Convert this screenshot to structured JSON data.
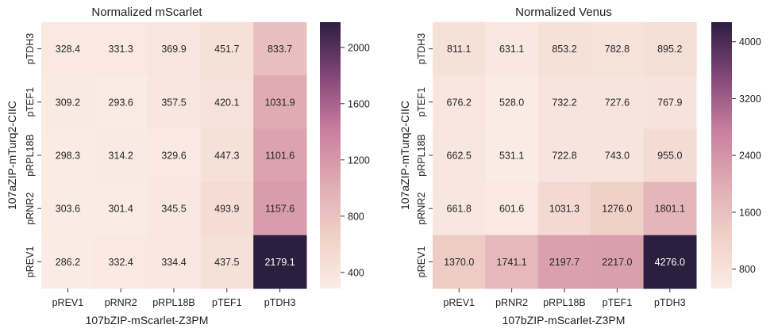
{
  "chart_data": [
    {
      "type": "heatmap",
      "title": "Normalized mScarlet",
      "xlabel": "107bZIP-mScarlet-Z3PM",
      "ylabel": "107aZIP-mTurq2-CIIC",
      "x_categories": [
        "pREV1",
        "pRNR2",
        "pRPL18B",
        "pTEF1",
        "pTDH3"
      ],
      "y_categories": [
        "pTDH3",
        "pTEF1",
        "pRPL18B",
        "pRNR2",
        "pREV1"
      ],
      "values": [
        [
          "328.4",
          "331.3",
          "369.9",
          "451.7",
          "833.7"
        ],
        [
          "309.2",
          "293.6",
          "357.5",
          "420.1",
          "1031.9"
        ],
        [
          "298.3",
          "314.2",
          "329.6",
          "447.3",
          "1101.6"
        ],
        [
          "303.6",
          "301.4",
          "345.5",
          "493.9",
          "1157.6"
        ],
        [
          "286.2",
          "332.4",
          "334.4",
          "437.5",
          "2179.1"
        ]
      ],
      "colorbar_ticks": [
        "400",
        "800",
        "1200",
        "1600",
        "2000"
      ],
      "color_range": [
        286.2,
        2179.1
      ]
    },
    {
      "type": "heatmap",
      "title": "Normalized Venus",
      "xlabel": "107bZIP-mScarlet-Z3PM",
      "ylabel": "107aZIP-mTurq2-CIIC",
      "x_categories": [
        "pREV1",
        "pRNR2",
        "pRPL18B",
        "pTEF1",
        "pTDH3"
      ],
      "y_categories": [
        "pTDH3",
        "pTEF1",
        "pRPL18B",
        "pRNR2",
        "pREV1"
      ],
      "values": [
        [
          "811.1",
          "631.1",
          "853.2",
          "782.8",
          "895.2"
        ],
        [
          "676.2",
          "528.0",
          "732.2",
          "727.6",
          "767.9"
        ],
        [
          "662.5",
          "531.1",
          "722.8",
          "743.0",
          "955.0"
        ],
        [
          "661.8",
          "601.6",
          "1031.3",
          "1276.0",
          "1801.1"
        ],
        [
          "1370.0",
          "1741.1",
          "2197.7",
          "2217.0",
          "4276.0"
        ]
      ],
      "colorbar_ticks": [
        "800",
        "1600",
        "2400",
        "3200",
        "4000"
      ],
      "color_range": [
        528.0,
        4276.0
      ]
    }
  ]
}
